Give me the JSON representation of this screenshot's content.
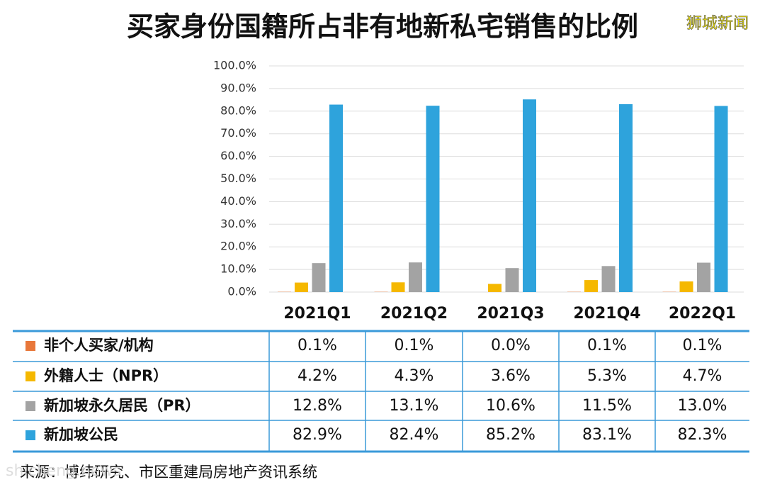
{
  "chart_data": {
    "type": "bar",
    "title": "买家身份国籍所占非有地新私宅销售的比例",
    "watermark": "狮城新闻",
    "source": "来源：博纬研究、市区重建局房地产资讯系统",
    "source_watermark": "shicheng.news",
    "categories": [
      "2021Q1",
      "2021Q2",
      "2021Q3",
      "2021Q4",
      "2022Q1"
    ],
    "series": [
      {
        "name": "非个人买家/机构",
        "color": "#e8773a",
        "values": [
          0.1,
          0.1,
          0.0,
          0.1,
          0.1
        ],
        "value_labels": [
          "0.1%",
          "0.1%",
          "0.0%",
          "0.1%",
          "0.1%"
        ]
      },
      {
        "name": "外籍人士（NPR）",
        "color": "#f5b800",
        "values": [
          4.2,
          4.3,
          3.6,
          5.3,
          4.7
        ],
        "value_labels": [
          "4.2%",
          "4.3%",
          "3.6%",
          "5.3%",
          "4.7%"
        ]
      },
      {
        "name": "新加坡永久居民（PR）",
        "color": "#a3a3a3",
        "values": [
          12.8,
          13.1,
          10.6,
          11.5,
          13.0
        ],
        "value_labels": [
          "12.8%",
          "13.1%",
          "10.6%",
          "11.5%",
          "13.0%"
        ]
      },
      {
        "name": "新加坡公民",
        "color": "#2ea3dc",
        "values": [
          82.9,
          82.4,
          85.2,
          83.1,
          82.3
        ],
        "value_labels": [
          "82.9%",
          "82.4%",
          "85.2%",
          "83.1%",
          "82.3%"
        ]
      }
    ],
    "ylim": [
      0,
      100
    ],
    "yticks": [
      {
        "value": 0,
        "label": "0.0%"
      },
      {
        "value": 10,
        "label": "10.0%"
      },
      {
        "value": 20,
        "label": "20.0%"
      },
      {
        "value": 30,
        "label": "30.0%"
      },
      {
        "value": 40,
        "label": "40.0%"
      },
      {
        "value": 50,
        "label": "50.0%"
      },
      {
        "value": 60,
        "label": "60.0%"
      },
      {
        "value": 70,
        "label": "70.0%"
      },
      {
        "value": 80,
        "label": "80.0%"
      },
      {
        "value": 90,
        "label": "90.0%"
      },
      {
        "value": 100,
        "label": "100.0%"
      }
    ],
    "grid": true
  }
}
